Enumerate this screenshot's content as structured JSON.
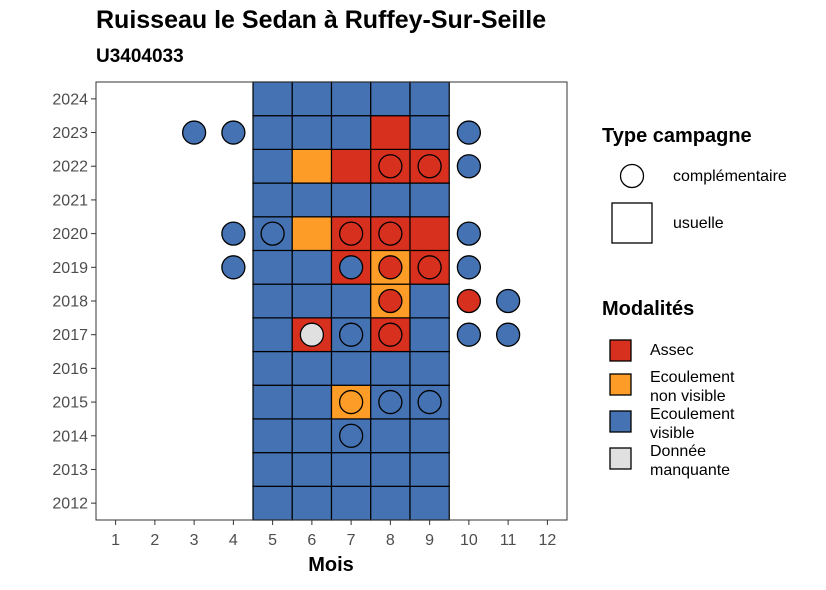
{
  "chart_data": {
    "type": "heatmap",
    "title": "Ruisseau le Sedan à Ruffey-Sur-Seille",
    "subtitle": "U3404033",
    "xlabel": "Mois",
    "ylabel": "",
    "x_ticks": [
      "1",
      "2",
      "3",
      "4",
      "5",
      "6",
      "7",
      "8",
      "9",
      "10",
      "11",
      "12"
    ],
    "y_ticks": [
      "2012",
      "2013",
      "2014",
      "2015",
      "2016",
      "2017",
      "2018",
      "2019",
      "2020",
      "2021",
      "2022",
      "2023",
      "2024"
    ],
    "xlim": [
      0.5,
      12.5
    ],
    "ylim": [
      2011.5,
      2024.5
    ],
    "grid": false,
    "legend_position": "right",
    "colors": {
      "Assec": "#d7301f",
      "Ecoulement non visible": "#fd9c27",
      "Ecoulement visible": "#4472b2",
      "Donnée manquante": "#e0e0e0"
    },
    "usuelle": [
      {
        "year": 2012,
        "months": {
          "5": "Ecoulement visible",
          "6": "Ecoulement visible",
          "7": "Ecoulement visible",
          "8": "Ecoulement visible",
          "9": "Ecoulement visible"
        }
      },
      {
        "year": 2013,
        "months": {
          "5": "Ecoulement visible",
          "6": "Ecoulement visible",
          "7": "Ecoulement visible",
          "8": "Ecoulement visible",
          "9": "Ecoulement visible"
        }
      },
      {
        "year": 2014,
        "months": {
          "5": "Ecoulement visible",
          "6": "Ecoulement visible",
          "7": "Ecoulement visible",
          "8": "Ecoulement visible",
          "9": "Ecoulement visible"
        }
      },
      {
        "year": 2015,
        "months": {
          "5": "Ecoulement visible",
          "6": "Ecoulement visible",
          "7": "Ecoulement non visible",
          "8": "Ecoulement visible",
          "9": "Ecoulement visible"
        }
      },
      {
        "year": 2016,
        "months": {
          "5": "Ecoulement visible",
          "6": "Ecoulement visible",
          "7": "Ecoulement visible",
          "8": "Ecoulement visible",
          "9": "Ecoulement visible"
        }
      },
      {
        "year": 2017,
        "months": {
          "5": "Ecoulement visible",
          "6": "Assec",
          "7": "Ecoulement visible",
          "8": "Assec",
          "9": "Ecoulement visible"
        }
      },
      {
        "year": 2018,
        "months": {
          "5": "Ecoulement visible",
          "6": "Ecoulement visible",
          "7": "Ecoulement visible",
          "8": "Ecoulement non visible",
          "9": "Ecoulement visible"
        }
      },
      {
        "year": 2019,
        "months": {
          "5": "Ecoulement visible",
          "6": "Ecoulement visible",
          "7": "Assec",
          "8": "Ecoulement non visible",
          "9": "Assec"
        }
      },
      {
        "year": 2020,
        "months": {
          "5": "Ecoulement visible",
          "6": "Ecoulement non visible",
          "7": "Assec",
          "8": "Assec",
          "9": "Assec"
        }
      },
      {
        "year": 2021,
        "months": {
          "5": "Ecoulement visible",
          "6": "Ecoulement visible",
          "7": "Ecoulement visible",
          "8": "Ecoulement visible",
          "9": "Ecoulement visible"
        }
      },
      {
        "year": 2022,
        "months": {
          "5": "Ecoulement visible",
          "6": "Ecoulement non visible",
          "7": "Assec",
          "8": "Assec",
          "9": "Assec"
        }
      },
      {
        "year": 2023,
        "months": {
          "5": "Ecoulement visible",
          "6": "Ecoulement visible",
          "7": "Ecoulement visible",
          "8": "Assec",
          "9": "Ecoulement visible"
        }
      },
      {
        "year": 2024,
        "months": {
          "5": "Ecoulement visible",
          "6": "Ecoulement visible",
          "7": "Ecoulement visible",
          "8": "Ecoulement visible",
          "9": "Ecoulement visible"
        }
      }
    ],
    "complementaire": [
      {
        "year": 2023,
        "month": 3,
        "value": "Ecoulement visible"
      },
      {
        "year": 2023,
        "month": 4,
        "value": "Ecoulement visible"
      },
      {
        "year": 2023,
        "month": 10,
        "value": "Ecoulement visible"
      },
      {
        "year": 2022,
        "month": 8,
        "value": "Assec"
      },
      {
        "year": 2022,
        "month": 9,
        "value": "Assec"
      },
      {
        "year": 2022,
        "month": 10,
        "value": "Ecoulement visible"
      },
      {
        "year": 2020,
        "month": 4,
        "value": "Ecoulement visible"
      },
      {
        "year": 2020,
        "month": 5,
        "value": "Ecoulement visible"
      },
      {
        "year": 2020,
        "month": 7,
        "value": "Assec"
      },
      {
        "year": 2020,
        "month": 8,
        "value": "Assec"
      },
      {
        "year": 2020,
        "month": 10,
        "value": "Ecoulement visible"
      },
      {
        "year": 2019,
        "month": 4,
        "value": "Ecoulement visible"
      },
      {
        "year": 2019,
        "month": 7,
        "value": "Ecoulement visible"
      },
      {
        "year": 2019,
        "month": 8,
        "value": "Assec"
      },
      {
        "year": 2019,
        "month": 9,
        "value": "Assec"
      },
      {
        "year": 2019,
        "month": 10,
        "value": "Ecoulement visible"
      },
      {
        "year": 2018,
        "month": 8,
        "value": "Assec"
      },
      {
        "year": 2018,
        "month": 10,
        "value": "Assec"
      },
      {
        "year": 2018,
        "month": 11,
        "value": "Ecoulement visible"
      },
      {
        "year": 2017,
        "month": 6,
        "value": "Donnée manquante"
      },
      {
        "year": 2017,
        "month": 7,
        "value": "Ecoulement visible"
      },
      {
        "year": 2017,
        "month": 8,
        "value": "Assec"
      },
      {
        "year": 2017,
        "month": 10,
        "value": "Ecoulement visible"
      },
      {
        "year": 2017,
        "month": 11,
        "value": "Ecoulement visible"
      },
      {
        "year": 2015,
        "month": 7,
        "value": "Ecoulement non visible"
      },
      {
        "year": 2015,
        "month": 8,
        "value": "Ecoulement visible"
      },
      {
        "year": 2015,
        "month": 9,
        "value": "Ecoulement visible"
      },
      {
        "year": 2014,
        "month": 7,
        "value": "Ecoulement visible"
      }
    ]
  },
  "legend": {
    "type_title": "Type campagne",
    "type_items": [
      "complémentaire",
      "usuelle"
    ],
    "modal_title": "Modalités",
    "modal_items": [
      {
        "label": "Assec",
        "key": "Assec"
      },
      {
        "label": "Ecoulement\nnon visible",
        "key": "Ecoulement non visible"
      },
      {
        "label": "Ecoulement\nvisible",
        "key": "Ecoulement visible"
      },
      {
        "label": "Donnée\nmanquante",
        "key": "Donnée manquante"
      }
    ]
  }
}
